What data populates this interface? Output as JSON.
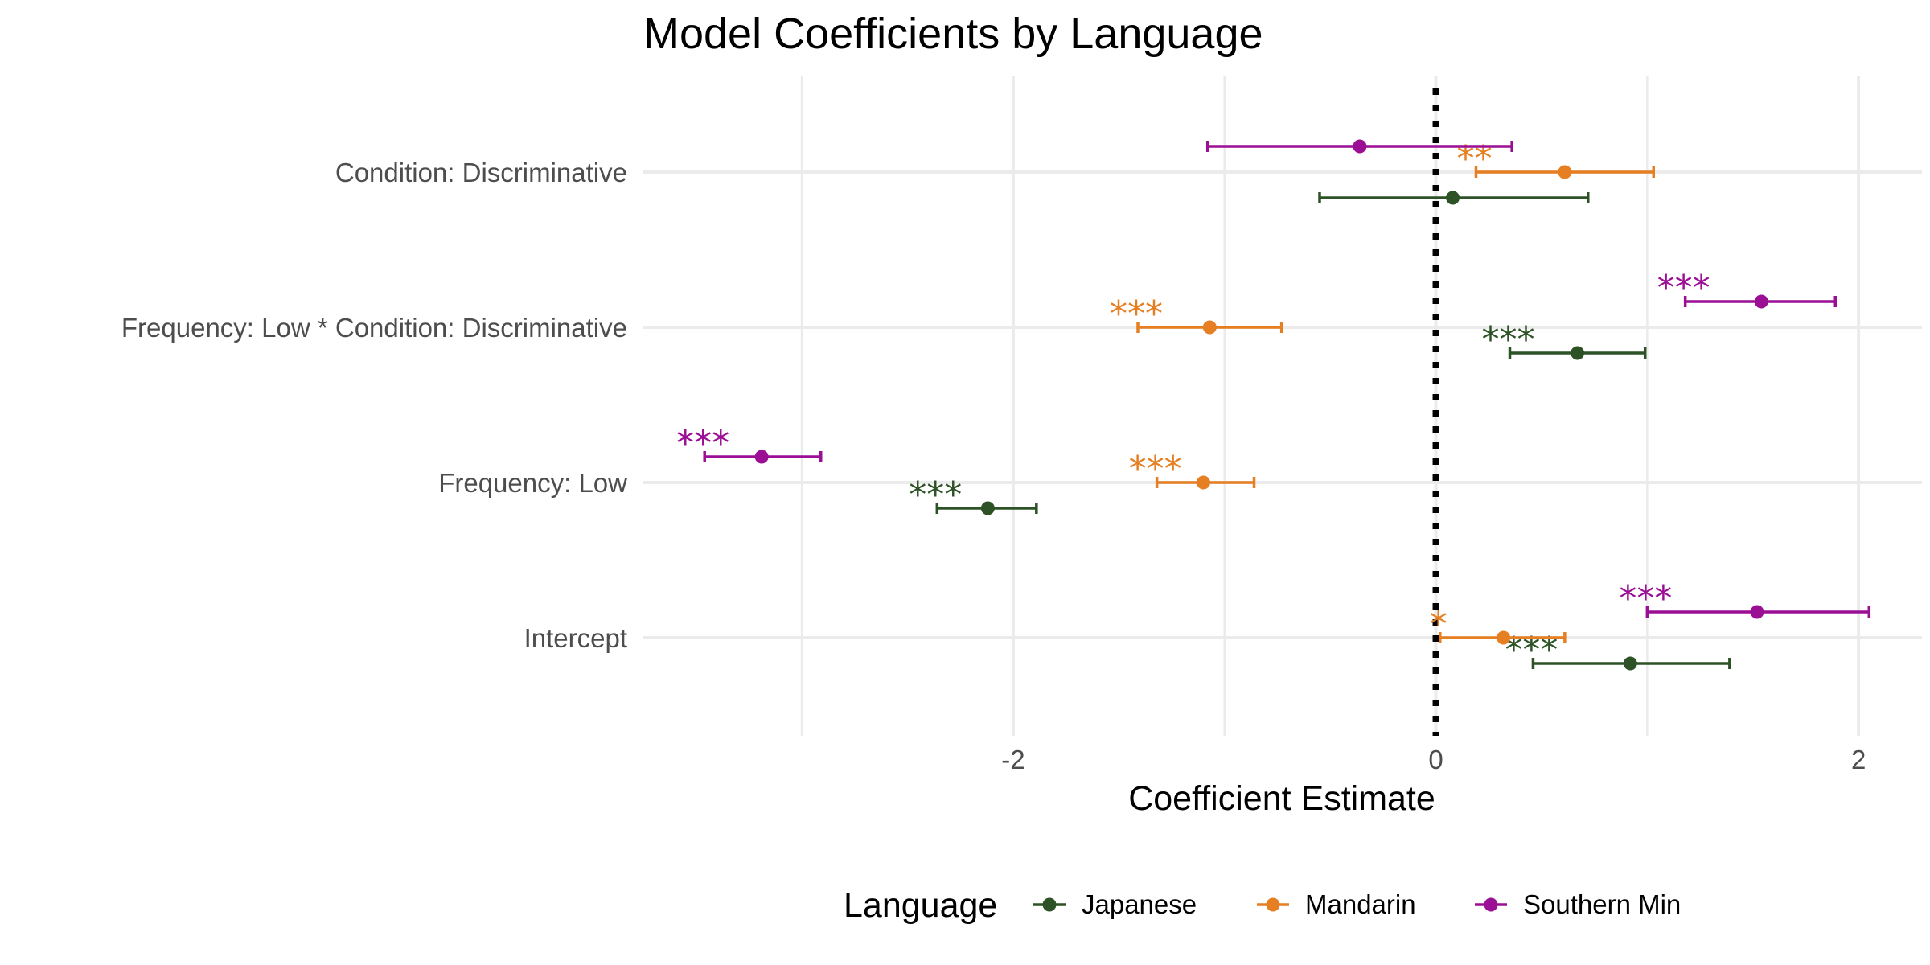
{
  "colors": {
    "Japanese": "#2d5226",
    "Mandarin": "#e67e22",
    "Southern Min": "#9b0f95",
    "zero_line": "#000000"
  },
  "chart_data": {
    "type": "errorbar",
    "title": "Model Coefficients by Language",
    "xlabel": "Coefficient Estimate",
    "ylabel": "",
    "xlim": [
      -3.75,
      2.3
    ],
    "xticks": [
      -2,
      0,
      2
    ],
    "xtick_labels": [
      "-2",
      "0",
      "2"
    ],
    "categories": [
      "Condition: Discriminative",
      "Frequency: Low * Condition: Discriminative",
      "Frequency: Low",
      "Intercept"
    ],
    "reference_line": {
      "x": 0,
      "style": "dotted"
    },
    "legend": {
      "title": "Language",
      "position": "bottom",
      "entries": [
        "Japanese",
        "Mandarin",
        "Southern Min"
      ]
    },
    "grid": true,
    "series": [
      {
        "name": "Japanese",
        "points": [
          {
            "category": "Condition: Discriminative",
            "estimate": 0.08,
            "lower": -0.55,
            "upper": 0.72,
            "sig": ""
          },
          {
            "category": "Frequency: Low * Condition: Discriminative",
            "estimate": 0.67,
            "lower": 0.35,
            "upper": 0.99,
            "sig": "***"
          },
          {
            "category": "Frequency: Low",
            "estimate": -2.12,
            "lower": -2.36,
            "upper": -1.89,
            "sig": "***"
          },
          {
            "category": "Intercept",
            "estimate": 0.92,
            "lower": 0.46,
            "upper": 1.39,
            "sig": "***"
          }
        ]
      },
      {
        "name": "Mandarin",
        "points": [
          {
            "category": "Condition: Discriminative",
            "estimate": 0.61,
            "lower": 0.19,
            "upper": 1.03,
            "sig": "**"
          },
          {
            "category": "Frequency: Low * Condition: Discriminative",
            "estimate": -1.07,
            "lower": -1.41,
            "upper": -0.73,
            "sig": "***"
          },
          {
            "category": "Frequency: Low",
            "estimate": -1.1,
            "lower": -1.32,
            "upper": -0.86,
            "sig": "***"
          },
          {
            "category": "Intercept",
            "estimate": 0.32,
            "lower": 0.02,
            "upper": 0.61,
            "sig": "*"
          }
        ]
      },
      {
        "name": "Southern Min",
        "points": [
          {
            "category": "Condition: Discriminative",
            "estimate": -0.36,
            "lower": -1.08,
            "upper": 0.36,
            "sig": ""
          },
          {
            "category": "Frequency: Low * Condition: Discriminative",
            "estimate": 1.54,
            "lower": 1.18,
            "upper": 1.89,
            "sig": "***"
          },
          {
            "category": "Frequency: Low",
            "estimate": -3.19,
            "lower": -3.46,
            "upper": -2.91,
            "sig": "***"
          },
          {
            "category": "Intercept",
            "estimate": 1.52,
            "lower": 1.0,
            "upper": 2.05,
            "sig": "***"
          }
        ]
      }
    ]
  }
}
